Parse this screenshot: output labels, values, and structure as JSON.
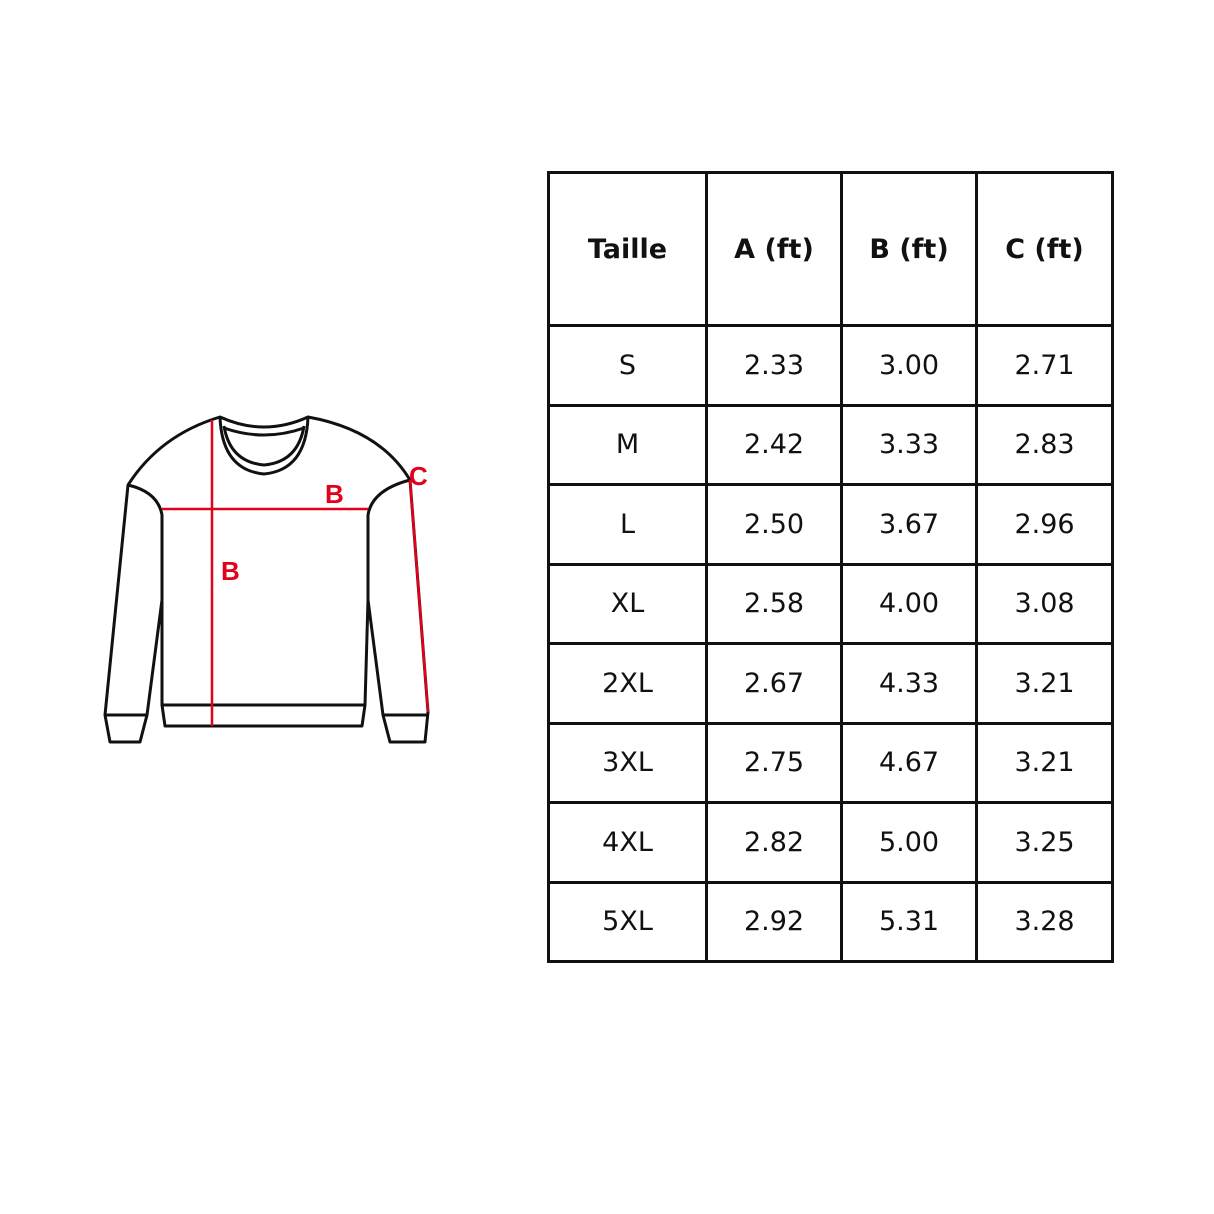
{
  "diagram": {
    "labels": {
      "chest": "B",
      "length": "B",
      "sleeve": "C"
    },
    "accent_color": "#e3001b"
  },
  "table": {
    "headers": [
      "Taille",
      "A (ft)",
      "B (ft)",
      "C (ft)"
    ],
    "rows": [
      [
        "S",
        "2.33",
        "3.00",
        "2.71"
      ],
      [
        "M",
        "2.42",
        "3.33",
        "2.83"
      ],
      [
        "L",
        "2.50",
        "3.67",
        "2.96"
      ],
      [
        "XL",
        "2.58",
        "4.00",
        "3.08"
      ],
      [
        "2XL",
        "2.67",
        "4.33",
        "3.21"
      ],
      [
        "3XL",
        "2.75",
        "4.67",
        "3.21"
      ],
      [
        "4XL",
        "2.82",
        "5.00",
        "3.25"
      ],
      [
        "5XL",
        "2.92",
        "5.31",
        "3.28"
      ]
    ]
  }
}
